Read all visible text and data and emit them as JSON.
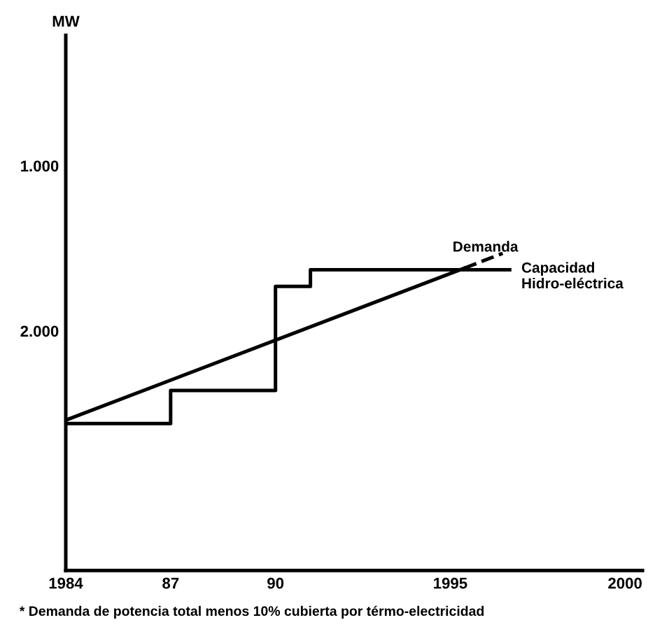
{
  "chart_data": {
    "type": "line",
    "series": [
      {
        "name": "Demanda",
        "color": "#000000",
        "x": [
          1984,
          1995.4
        ],
        "values": [
          2540,
          1620
        ],
        "line_style": "solid"
      },
      {
        "color": "#000000",
        "x": [
          1995.4,
          1996.5
        ],
        "values": [
          1620,
          1530
        ],
        "line_style": "dashed"
      },
      {
        "name": "Capacidad\nHidro-eléctrica",
        "type": "step",
        "color": "#000000",
        "x": [
          1984,
          1987,
          1990,
          1991,
          1996.7
        ],
        "values": [
          2560,
          2360,
          1730,
          1630,
          1630
        ],
        "line_style": "solid"
      }
    ],
    "ylabel": "MW",
    "xlim": [
      1984,
      2000.5
    ],
    "xticks": [
      1984,
      {
        "value": 1987,
        "label": "87"
      },
      {
        "value": 1990,
        "label": "90"
      },
      1995,
      2000
    ],
    "ylim": [
      3450,
      210
    ],
    "yticks": [
      {
        "value": 1000,
        "label": "1.000"
      },
      {
        "value": 2000,
        "label": "2.000"
      }
    ],
    "grid": false,
    "legend": false,
    "annotations": [
      "* Demanda de potencia total menos 10% cubierta por térmo-electricidad"
    ]
  }
}
